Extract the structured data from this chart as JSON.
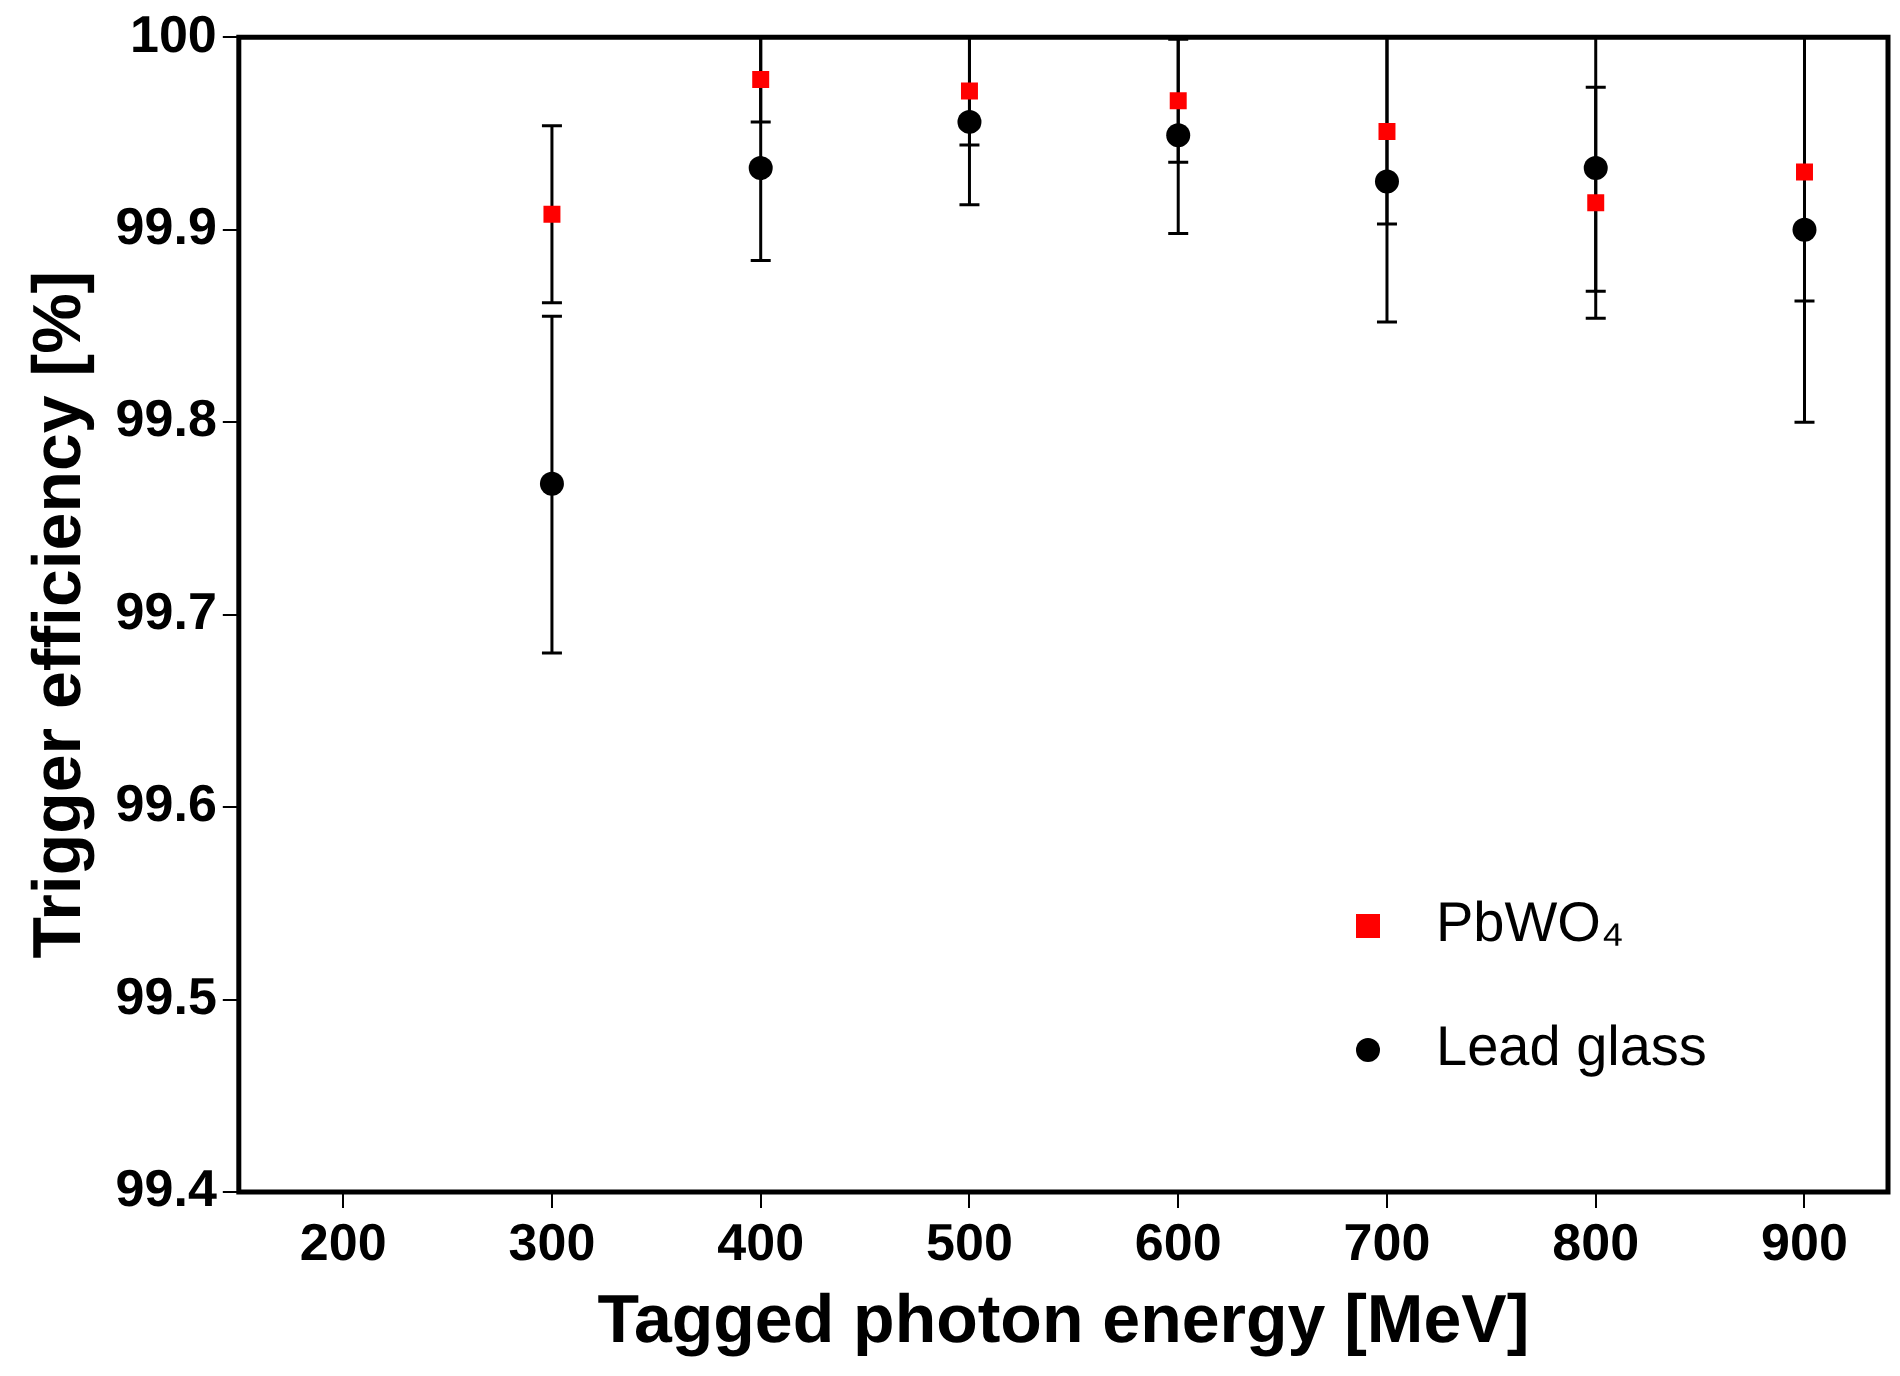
{
  "chart_data": {
    "type": "scatter",
    "xlabel": "Tagged photon energy [MeV]",
    "ylabel": "Trigger efficiency [%]",
    "xlim": [
      150,
      940
    ],
    "xticks": [
      200,
      300,
      400,
      500,
      600,
      700,
      800,
      900
    ],
    "ylim": [
      99.4,
      100
    ],
    "yticks": [
      99.4,
      99.5,
      99.6,
      99.7,
      99.8,
      99.9,
      100
    ],
    "grid": false,
    "legend": "bottom right",
    "series": [
      {
        "name": "PbWO₄",
        "color": "#ff0000",
        "marker": "square",
        "x": [
          300,
          400,
          500,
          600,
          700,
          800,
          900
        ],
        "values": [
          99.908,
          99.978,
          99.972,
          99.967,
          99.951,
          99.914,
          99.93
        ],
        "errors": [
          [
            99.862,
            99.954
          ],
          0.022,
          0.028,
          0.032,
          [
            99.903,
            100
          ],
          0.06,
          [
            99.863,
            100
          ]
        ]
      },
      {
        "name": "Lead glass",
        "color": "#000000",
        "marker": "circle",
        "x": [
          300,
          400,
          500,
          600,
          700,
          800,
          900
        ],
        "values": [
          99.768,
          99.932,
          99.956,
          99.949,
          99.925,
          99.932,
          99.9
        ],
        "errors": [
          [
            99.68,
            99.855
          ],
          [
            99.884,
            100
          ],
          [
            99.913,
            100
          ],
          [
            99.898,
            100
          ],
          [
            99.852,
            100
          ],
          [
            99.868,
            100
          ],
          0.1
        ]
      }
    ]
  }
}
